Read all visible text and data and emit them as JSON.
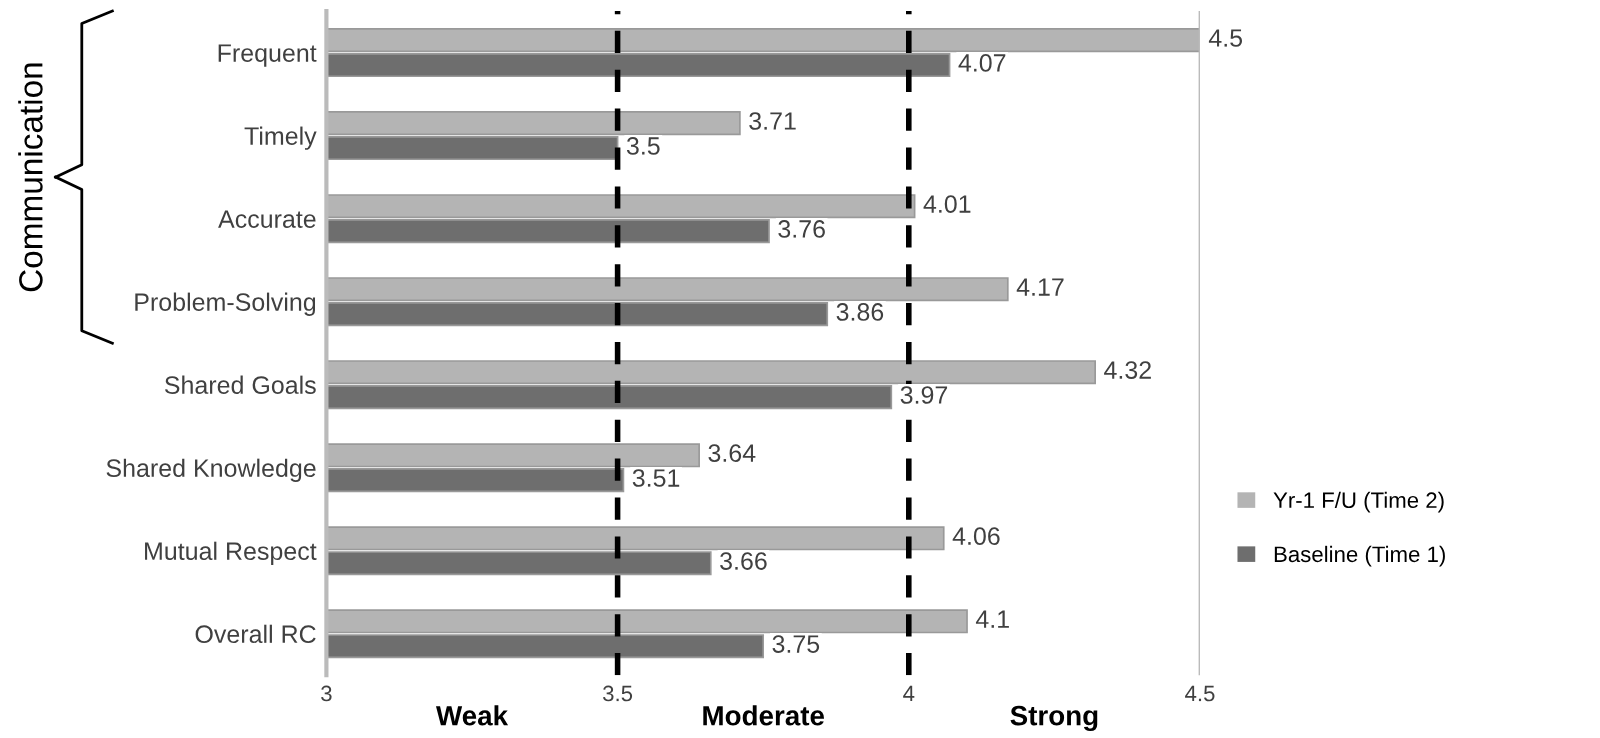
{
  "chart_data": {
    "type": "bar",
    "orientation": "horizontal",
    "categories": [
      "Frequent",
      "Timely",
      "Accurate",
      "Problem-Solving",
      "Shared Goals",
      "Shared Knowledge",
      "Mutual Respect",
      "Overall RC"
    ],
    "series": [
      {
        "name": "Yr-1 F/U (Time 2)",
        "color": "#b4b4b4",
        "values": [
          4.5,
          3.71,
          4.01,
          4.17,
          4.32,
          3.64,
          4.06,
          4.1
        ]
      },
      {
        "name": "Baseline (Time 1)",
        "color": "#6e6e6e",
        "values": [
          4.07,
          3.5,
          3.76,
          3.86,
          3.97,
          3.51,
          3.66,
          3.75
        ]
      }
    ],
    "xlim": [
      3,
      4.5
    ],
    "xticks": [
      3,
      3.5,
      4,
      4.5
    ],
    "ref_lines": [
      {
        "axis": "x",
        "value": 3.5,
        "color": "#000000",
        "line_style": "dashed"
      },
      {
        "axis": "x",
        "value": 4,
        "color": "#000000",
        "line_style": "dashed"
      },
      {
        "axis": "x",
        "value": 4.5,
        "color": "#bbbbbb",
        "line_style": "solid"
      }
    ],
    "annotations": [
      "Communication",
      "Weak",
      "Moderate",
      "Strong"
    ],
    "legend": "right",
    "data_labels": true
  }
}
